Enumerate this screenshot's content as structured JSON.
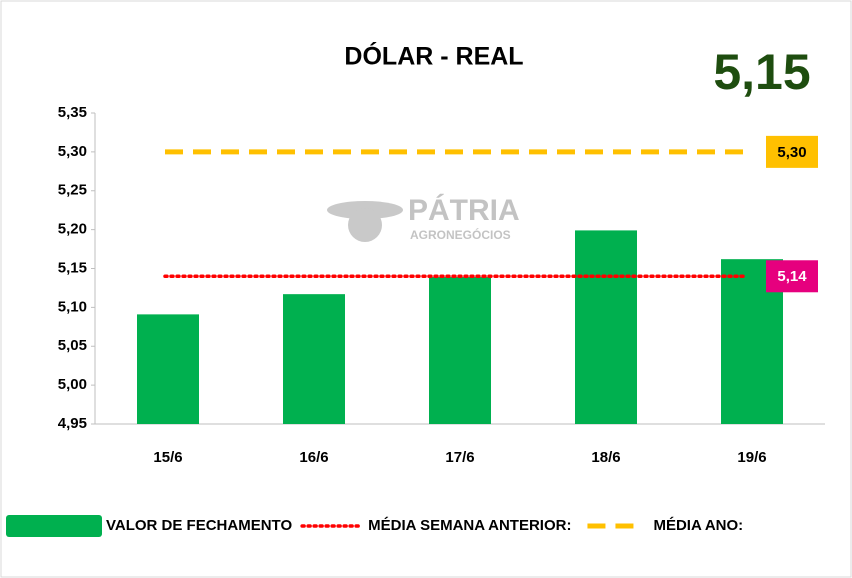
{
  "chart_data": {
    "type": "bar",
    "title": "DÓLAR - REAL",
    "headline": "5,15",
    "watermark": [
      "PÁTRIA",
      "AGRONEGÓCIOS"
    ],
    "categories": [
      "15/6",
      "16/6",
      "17/6",
      "18/6",
      "19/6"
    ],
    "series": [
      {
        "name": "VALOR DE FECHAMENTO",
        "color": "#00b04f",
        "values": [
          5.091,
          5.117,
          5.139,
          5.199,
          5.162
        ]
      }
    ],
    "reference_lines": [
      {
        "name": "MÉDIA SEMANA ANTERIOR:",
        "value": 5.14,
        "value_label": "5,14",
        "color": "#ff0000",
        "label_color": "#e6007e",
        "style": "dotted"
      },
      {
        "name": "MÉDIA ANO:",
        "value": 5.3,
        "value_label": "5,30",
        "color": "#ffc000",
        "label_color": "#ffc000",
        "style": "dashed"
      }
    ],
    "ylim": [
      4.95,
      5.35
    ],
    "yticks": [
      {
        "value": 4.95,
        "label": "4,95"
      },
      {
        "value": 5.0,
        "label": "5,00"
      },
      {
        "value": 5.05,
        "label": "5,05"
      },
      {
        "value": 5.1,
        "label": "5,10"
      },
      {
        "value": 5.15,
        "label": "5,15"
      },
      {
        "value": 5.2,
        "label": "5,20"
      },
      {
        "value": 5.25,
        "label": "5,25"
      },
      {
        "value": 5.3,
        "label": "5,30"
      },
      {
        "value": 5.35,
        "label": "5,35"
      }
    ],
    "grid": false
  }
}
